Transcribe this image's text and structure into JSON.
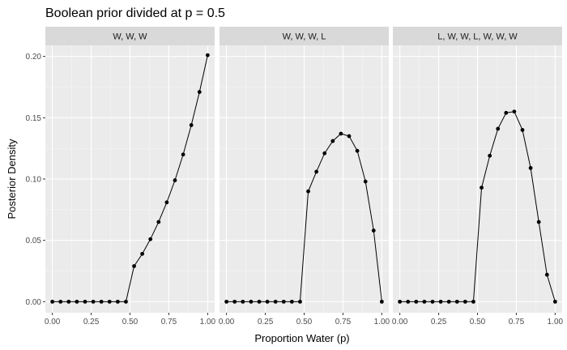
{
  "chart_data": {
    "type": "line",
    "title": "Boolean prior divided at p = 0.5",
    "xlabel": "Proportion Water (p)",
    "ylabel": "Posterior Density",
    "xlim": [
      0,
      1
    ],
    "ylim": [
      0,
      0.2
    ],
    "x_ticks": [
      "0.00",
      "0.25",
      "0.50",
      "0.75",
      "1.00"
    ],
    "y_ticks": [
      "0.00",
      "0.05",
      "0.10",
      "0.15",
      "0.20"
    ],
    "grid": true,
    "x": [
      0,
      0.05263,
      0.10526,
      0.15789,
      0.21053,
      0.26316,
      0.31579,
      0.36842,
      0.42105,
      0.47368,
      0.52632,
      0.57895,
      0.63158,
      0.68421,
      0.73684,
      0.78947,
      0.84211,
      0.89474,
      0.94737,
      1
    ],
    "panels": [
      {
        "label": "W, W, W",
        "values": [
          0,
          0,
          0,
          0,
          0,
          0,
          0,
          0,
          0,
          0,
          0.029,
          0.039,
          0.051,
          0.065,
          0.081,
          0.099,
          0.12,
          0.144,
          0.171,
          0.201
        ]
      },
      {
        "label": "W, W, W, L",
        "values": [
          0,
          0,
          0,
          0,
          0,
          0,
          0,
          0,
          0,
          0,
          0.09,
          0.106,
          0.121,
          0.131,
          0.137,
          0.135,
          0.123,
          0.098,
          0.058,
          0
        ]
      },
      {
        "label": "L, W, W, L, W, W, W",
        "values": [
          0,
          0,
          0,
          0,
          0,
          0,
          0,
          0,
          0,
          0,
          0.093,
          0.119,
          0.141,
          0.154,
          0.155,
          0.14,
          0.109,
          0.065,
          0.022,
          0
        ]
      }
    ]
  }
}
